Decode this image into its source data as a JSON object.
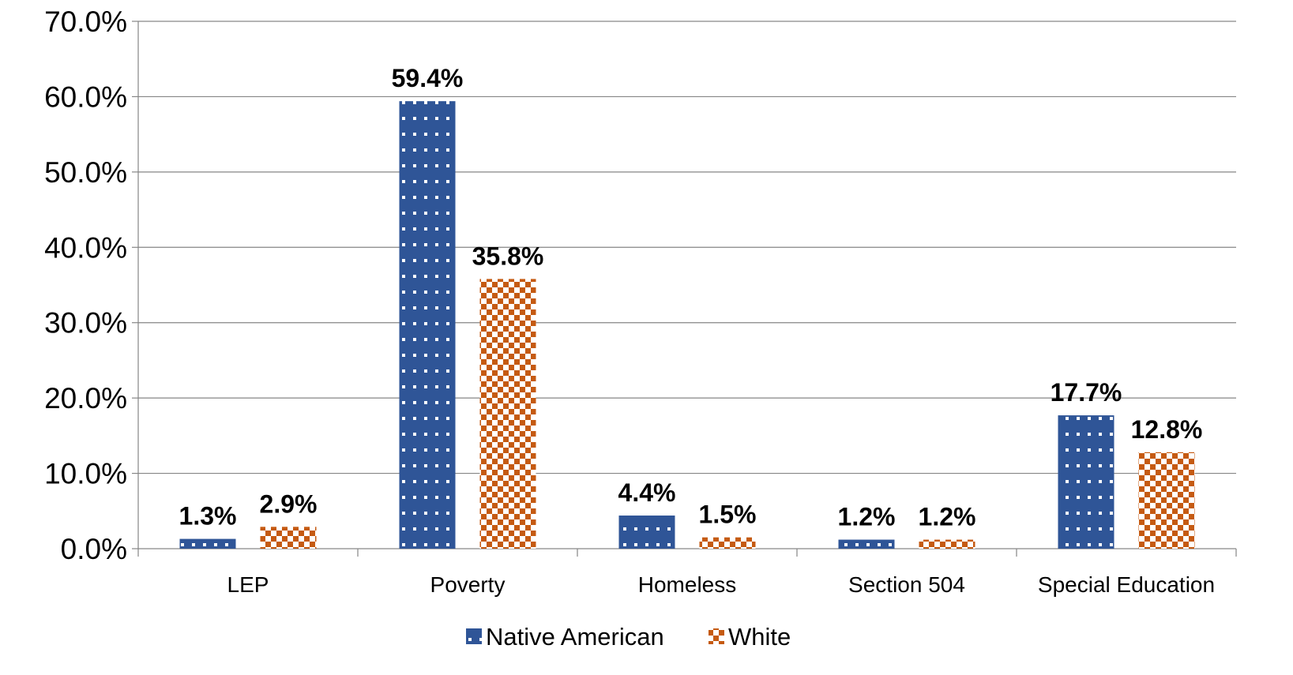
{
  "chart_data": {
    "type": "bar",
    "categories": [
      "LEP",
      "Poverty",
      "Homeless",
      "Section 504",
      "Special Education"
    ],
    "series": [
      {
        "name": "Native American",
        "values": [
          1.3,
          59.4,
          4.4,
          1.2,
          17.7
        ],
        "labels": [
          "1.3%",
          "59.4%",
          "4.4%",
          "1.2%",
          "17.7%"
        ],
        "color": "#2f5597",
        "pattern": "dots"
      },
      {
        "name": "White",
        "values": [
          2.9,
          35.8,
          1.5,
          1.2,
          12.8
        ],
        "labels": [
          "2.9%",
          "35.8%",
          "1.5%",
          "1.2%",
          "12.8%"
        ],
        "color": "#c55a11",
        "pattern": "checker"
      }
    ],
    "ylim": [
      0,
      70
    ],
    "yticks": [
      0,
      10,
      20,
      30,
      40,
      50,
      60,
      70
    ],
    "ytick_labels": [
      "0.0%",
      "10.0%",
      "20.0%",
      "30.0%",
      "40.0%",
      "50.0%",
      "60.0%",
      "70.0%"
    ],
    "grid": true,
    "legend_position": "bottom"
  }
}
